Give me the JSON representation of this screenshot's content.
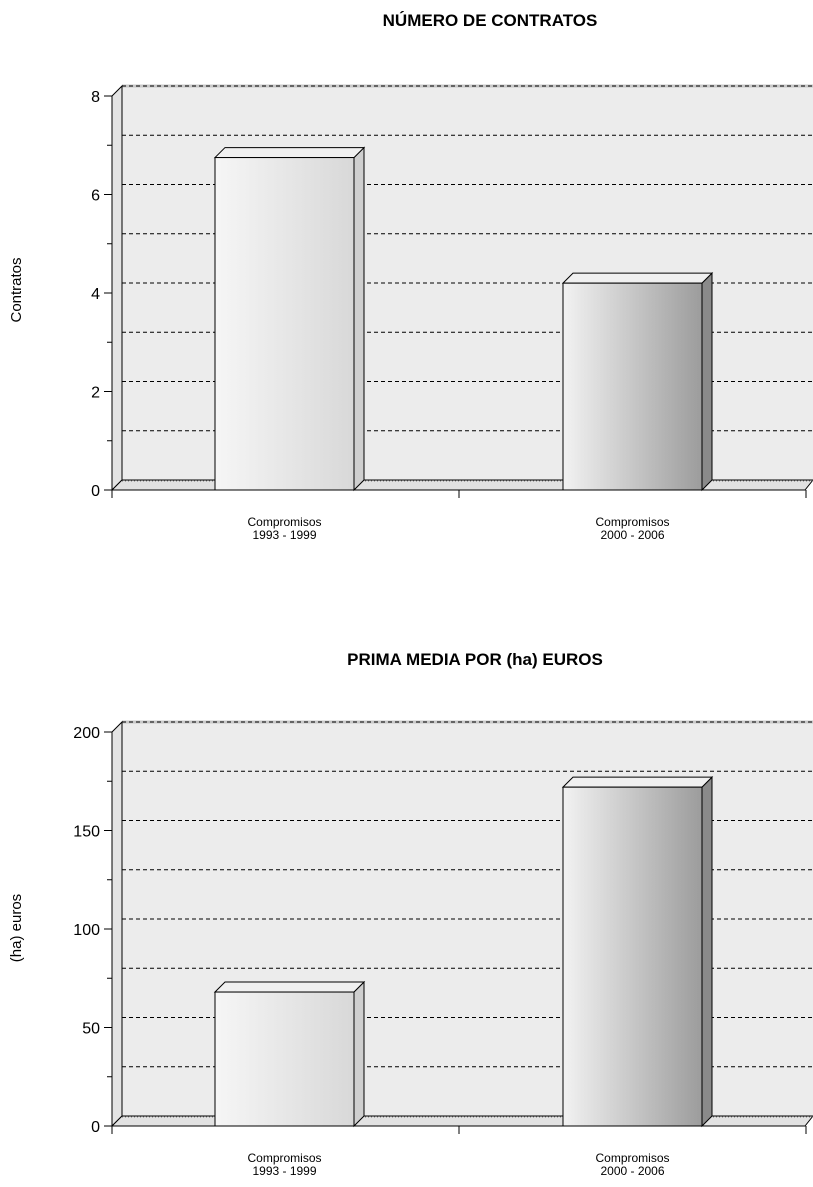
{
  "chart_data": [
    {
      "type": "bar",
      "title": "NÚMERO DE CONTRATOS",
      "ylabel": "Contratos",
      "xlabel": "",
      "categories": [
        [
          "Compromisos",
          "1993 - 1999"
        ],
        [
          "Compromisos",
          "2000 - 2006"
        ]
      ],
      "values": [
        6.75,
        4.2
      ],
      "ylim": [
        0,
        8
      ],
      "yticks": [
        0,
        2,
        4,
        6,
        8
      ],
      "grid": true,
      "legend": "none",
      "colors": {
        "bar_light": "#f4f4f4",
        "bar_dark": "#9a9a9a",
        "plot_bg": "#ececec",
        "grid": "#000000"
      }
    },
    {
      "type": "bar",
      "title": "PRIMA MEDIA POR (ha) EUROS",
      "ylabel": "(ha) euros",
      "xlabel": "",
      "categories": [
        [
          "Compromisos",
          "1993 - 1999"
        ],
        [
          "Compromisos",
          "2000 - 2006"
        ]
      ],
      "values": [
        68,
        172
      ],
      "ylim": [
        0,
        200
      ],
      "yticks": [
        0,
        50,
        100,
        150,
        200
      ],
      "grid": true,
      "legend": "none",
      "colors": {
        "bar_light": "#f4f4f4",
        "bar_dark": "#9a9a9a",
        "plot_bg": "#ececec",
        "grid": "#000000"
      }
    }
  ]
}
